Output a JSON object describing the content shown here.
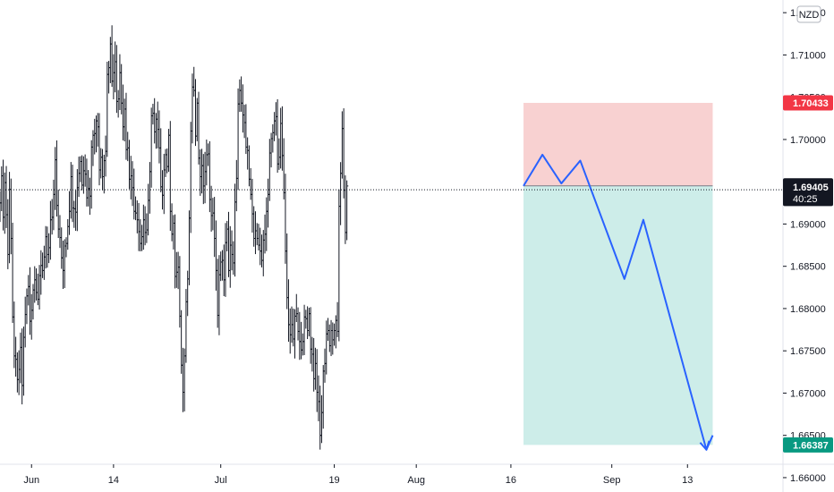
{
  "chart_data": {
    "type": "ohlc",
    "currency_badge": "NZD",
    "y_axis": {
      "ticks": [
        "1.66000",
        "1.66500",
        "1.67000",
        "1.67500",
        "1.68000",
        "1.68500",
        "1.69000",
        "1.69500",
        "1.70000",
        "1.70500",
        "1.71000",
        "1.71500"
      ],
      "tick_values": [
        1.66,
        1.665,
        1.67,
        1.675,
        1.68,
        1.685,
        1.69,
        1.695,
        1.7,
        1.705,
        1.71,
        1.715
      ],
      "range": [
        1.6583,
        1.7165
      ]
    },
    "x_axis": {
      "labels": [
        "Jun",
        "14",
        "Jul",
        "19",
        "Aug",
        "16",
        "Sep",
        "13"
      ],
      "dates": [
        "2021-06-01",
        "2021-06-14",
        "2021-07-01",
        "2021-07-19",
        "2021-08-01",
        "2021-08-16",
        "2021-09-01",
        "2021-09-13"
      ],
      "range": [
        "2021-05-27",
        "2021-09-28"
      ]
    },
    "price_tags": {
      "stop_loss": {
        "value": "1.70433",
        "color": "#f23645"
      },
      "last_close": {
        "value": "1.69451",
        "color": "#131722"
      },
      "current": {
        "value": "1.69405",
        "countdown": "40:25",
        "color": "#131722"
      },
      "target": {
        "value": "1.66387",
        "color": "#089981"
      }
    },
    "position": {
      "direction": "short",
      "start": "2021-08-18",
      "end": "2021-09-17",
      "entry": 1.69451,
      "stop": 1.70433,
      "target": 1.66387,
      "stop_fill": "#f7c9c9",
      "target_fill": "#c8ebe7"
    },
    "projection": {
      "color": "#2962ff",
      "points": [
        {
          "date": "2021-08-18",
          "price": 1.6945
        },
        {
          "date": "2021-08-21",
          "price": 1.6982
        },
        {
          "date": "2021-08-24",
          "price": 1.6948
        },
        {
          "date": "2021-08-27",
          "price": 1.6975
        },
        {
          "date": "2021-09-03",
          "price": 1.6835
        },
        {
          "date": "2021-09-06",
          "price": 1.6905
        },
        {
          "date": "2021-09-16",
          "price": 1.6633
        },
        {
          "date": "2021-09-17",
          "price": 1.665
        }
      ]
    },
    "candles": {
      "color": "#131722",
      "start": "2021-05-27",
      "interval_hours": 6,
      "close_series": [
        1.6925,
        1.6957,
        1.6908,
        1.6949,
        1.6911,
        1.6864,
        1.6941,
        1.6883,
        1.679,
        1.6744,
        1.674,
        1.6716,
        1.6728,
        1.6754,
        1.6709,
        1.6766,
        1.6793,
        1.6815,
        1.6826,
        1.6785,
        1.6798,
        1.6822,
        1.6834,
        1.6819,
        1.6811,
        1.6839,
        1.6851,
        1.6845,
        1.6861,
        1.6885,
        1.6864,
        1.6872,
        1.6905,
        1.6908,
        1.6935,
        1.6976,
        1.6922,
        1.6894,
        1.6884,
        1.686,
        1.6845,
        1.6874,
        1.6877,
        1.6897,
        1.6915,
        1.6956,
        1.6919,
        1.6918,
        1.6914,
        1.6943,
        1.696,
        1.6974,
        1.6946,
        1.6963,
        1.6959,
        1.6931,
        1.6942,
        1.6933,
        1.6991,
        1.7005,
        1.7007,
        1.7022,
        1.7015,
        1.6964,
        1.6979,
        1.6956,
        1.6975,
        1.6986,
        1.7077,
        1.7085,
        1.7113,
        1.7069,
        1.7079,
        1.7092,
        1.7045,
        1.7048,
        1.7079,
        1.7043,
        1.7015,
        1.7036,
        1.6988,
        1.699,
        1.6953,
        1.6957,
        1.6943,
        1.6915,
        1.6913,
        1.6905,
        1.6891,
        1.6877,
        1.6885,
        1.6905,
        1.689,
        1.6893,
        1.6928,
        1.6962,
        1.7028,
        1.7031,
        1.7009,
        1.7024,
        1.7012,
        1.699,
        1.6944,
        1.6934,
        1.6964,
        1.6982,
        1.6968,
        1.7005,
        1.6915,
        1.6888,
        1.6901,
        1.6838,
        1.6843,
        1.6849,
        1.6791,
        1.6733,
        1.6701,
        1.6744,
        1.6808,
        1.6835,
        1.6907,
        1.701,
        1.7062,
        1.7058,
        1.7004,
        1.7043,
        1.6978,
        1.6956,
        1.6969,
        1.6945,
        1.6962,
        1.6982,
        1.6983,
        1.6929,
        1.691,
        1.6913,
        1.6883,
        1.6845,
        1.6792,
        1.684,
        1.6855,
        1.6857,
        1.6834,
        1.6878,
        1.6894,
        1.6845,
        1.6875,
        1.6864,
        1.6854,
        1.6926,
        1.6954,
        1.7042,
        1.7058,
        1.7043,
        1.7029,
        1.702,
        1.6991,
        1.6987,
        1.6953,
        1.6935,
        1.6912,
        1.6883,
        1.6892,
        1.6883,
        1.6875,
        1.6868,
        1.6857,
        1.6881,
        1.6888,
        1.6915,
        1.6935,
        1.6984,
        1.7001,
        1.7008,
        1.7022,
        1.7027,
        1.6971,
        1.6979,
        1.7019,
        1.6981,
        1.6937,
        1.6868,
        1.6813,
        1.6781,
        1.6769,
        1.6781,
        1.6764,
        1.6791,
        1.6794,
        1.6773,
        1.6761,
        1.6751,
        1.6761,
        1.679,
        1.6788,
        1.6774,
        1.6794,
        1.6752,
        1.6746,
        1.6717,
        1.6735,
        1.6701,
        1.669,
        1.665,
        1.6677,
        1.6726,
        1.6735,
        1.677,
        1.6774,
        1.6756,
        1.6774,
        1.6763,
        1.6774,
        1.6786,
        1.6773,
        1.6921,
        1.696,
        1.7013,
        1.694,
        1.689,
        1.6945
      ]
    }
  }
}
